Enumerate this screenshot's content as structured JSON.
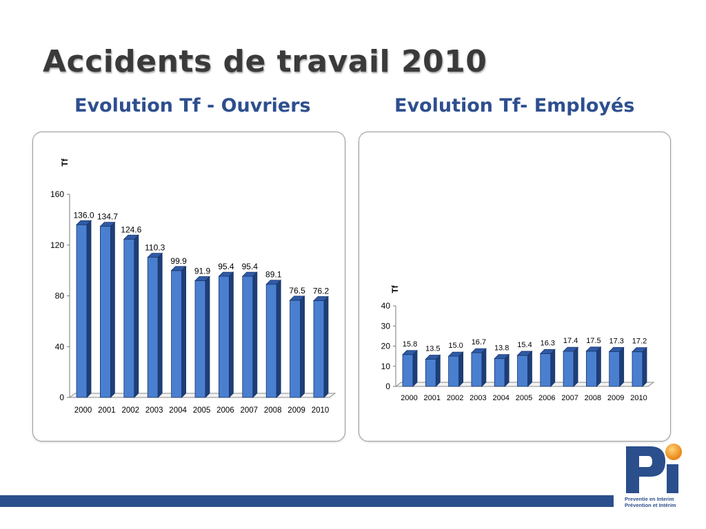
{
  "slide": {
    "title": "Accidents de travail 2010"
  },
  "colors": {
    "bar_front": "#4a7fd0",
    "bar_side": "#1d3e78",
    "bar_top": "#2f5aa6",
    "title_blue": "#2e4f8f",
    "footer_bar": "#2a4f8c",
    "logo_orange": "#f39a1e"
  },
  "charts": [
    {
      "subtitle": "Evolution Tf - Ouvriers",
      "ylabel": "Tf"
    },
    {
      "subtitle": "Evolution Tf- Employés",
      "ylabel": "Tf"
    }
  ],
  "chart_data": [
    {
      "type": "bar",
      "title": "Evolution Tf - Ouvriers",
      "xlabel": "",
      "ylabel": "Tf",
      "ylim": [
        0,
        160
      ],
      "yticks": [
        0,
        40,
        80,
        120,
        160
      ],
      "categories": [
        "2000",
        "2001",
        "2002",
        "2003",
        "2004",
        "2005",
        "2006",
        "2007",
        "2008",
        "2009",
        "2010"
      ],
      "values": [
        136.0,
        134.7,
        124.6,
        110.3,
        99.9,
        91.9,
        95.4,
        95.4,
        89.1,
        76.5,
        76.2
      ],
      "data_labels": [
        "136.0",
        "134.7",
        "124.6",
        "110.3",
        "99.9",
        "91.9",
        "95.4",
        "95.4",
        "89.1",
        "76.5",
        "76.2"
      ],
      "grid": false,
      "legend": "none",
      "style": "3d"
    },
    {
      "type": "bar",
      "title": "Evolution Tf- Employés",
      "xlabel": "",
      "ylabel": "Tf",
      "ylim": [
        0,
        40
      ],
      "yticks": [
        0,
        10,
        20,
        30,
        40
      ],
      "categories": [
        "2000",
        "2001",
        "2002",
        "2003",
        "2004",
        "2005",
        "2006",
        "2007",
        "2008",
        "2009",
        "2010"
      ],
      "values": [
        15.8,
        13.5,
        15.0,
        16.7,
        13.8,
        15.4,
        16.3,
        17.4,
        17.5,
        17.3,
        17.2
      ],
      "data_labels": [
        "15.8",
        "13.5",
        "15.0",
        "16.7",
        "13.8",
        "15.4",
        "16.3",
        "17.4",
        "17.5",
        "17.3",
        "17.2"
      ],
      "grid": false,
      "legend": "none",
      "style": "3d"
    }
  ],
  "logo": {
    "line1": "Preventie en Interim",
    "line2": "Prévention et Intérim"
  }
}
